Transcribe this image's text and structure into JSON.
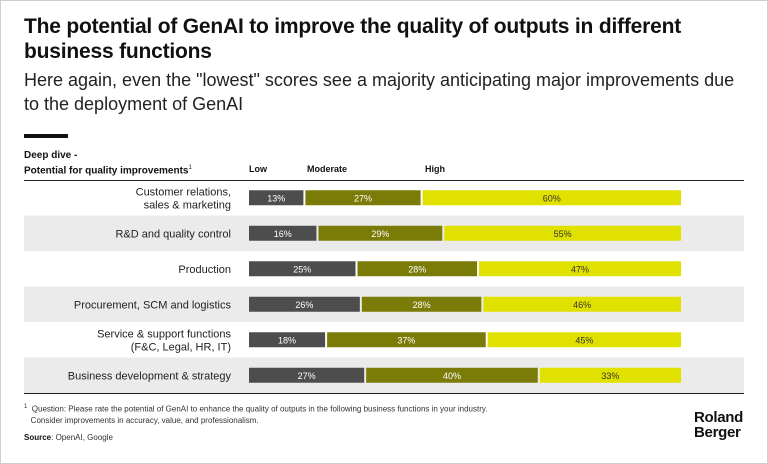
{
  "title": "The potential of GenAI to improve the quality of outputs in different business functions",
  "subtitle": "Here again, even the \"lowest\" scores see a majority anticipating major improvements due to the deployment of GenAI",
  "deep_dive_line1": "Deep dive -",
  "deep_dive_line2": "Potential for quality improvements",
  "deep_dive_sup": "1",
  "footnote_sup": "1",
  "footnote_line1": "Question: Please rate the potential of GenAI to enhance the quality of outputs in the following business functions in your industry.",
  "footnote_line2": "Consider improvements in accuracy, value, and professionalism.",
  "source_label": "Source",
  "source_text": "OpenAI, Google",
  "logo_line1": "Roland",
  "logo_line2": "Berger",
  "colors": {
    "low": "#4d4d4d",
    "moderate": "#7b7b08",
    "high": "#e1e100",
    "band": "#ebebeb"
  },
  "chart_data": {
    "type": "bar",
    "orientation": "horizontal",
    "stacked": true,
    "unit": "%",
    "categories": [
      [
        "Customer relations,",
        "sales & marketing"
      ],
      [
        "R&D and quality control"
      ],
      [
        "Production"
      ],
      [
        "Procurement, SCM and logistics"
      ],
      [
        "Service & support functions",
        "(F&C, Legal, HR, IT)"
      ],
      [
        "Business development & strategy"
      ]
    ],
    "series": [
      {
        "name": "Low",
        "values": [
          13,
          16,
          25,
          26,
          18,
          27
        ]
      },
      {
        "name": "Moderate",
        "values": [
          27,
          29,
          28,
          28,
          37,
          40
        ]
      },
      {
        "name": "High",
        "values": [
          60,
          55,
          47,
          46,
          45,
          33
        ]
      }
    ],
    "xlim": [
      0,
      100
    ],
    "legend": "top"
  }
}
